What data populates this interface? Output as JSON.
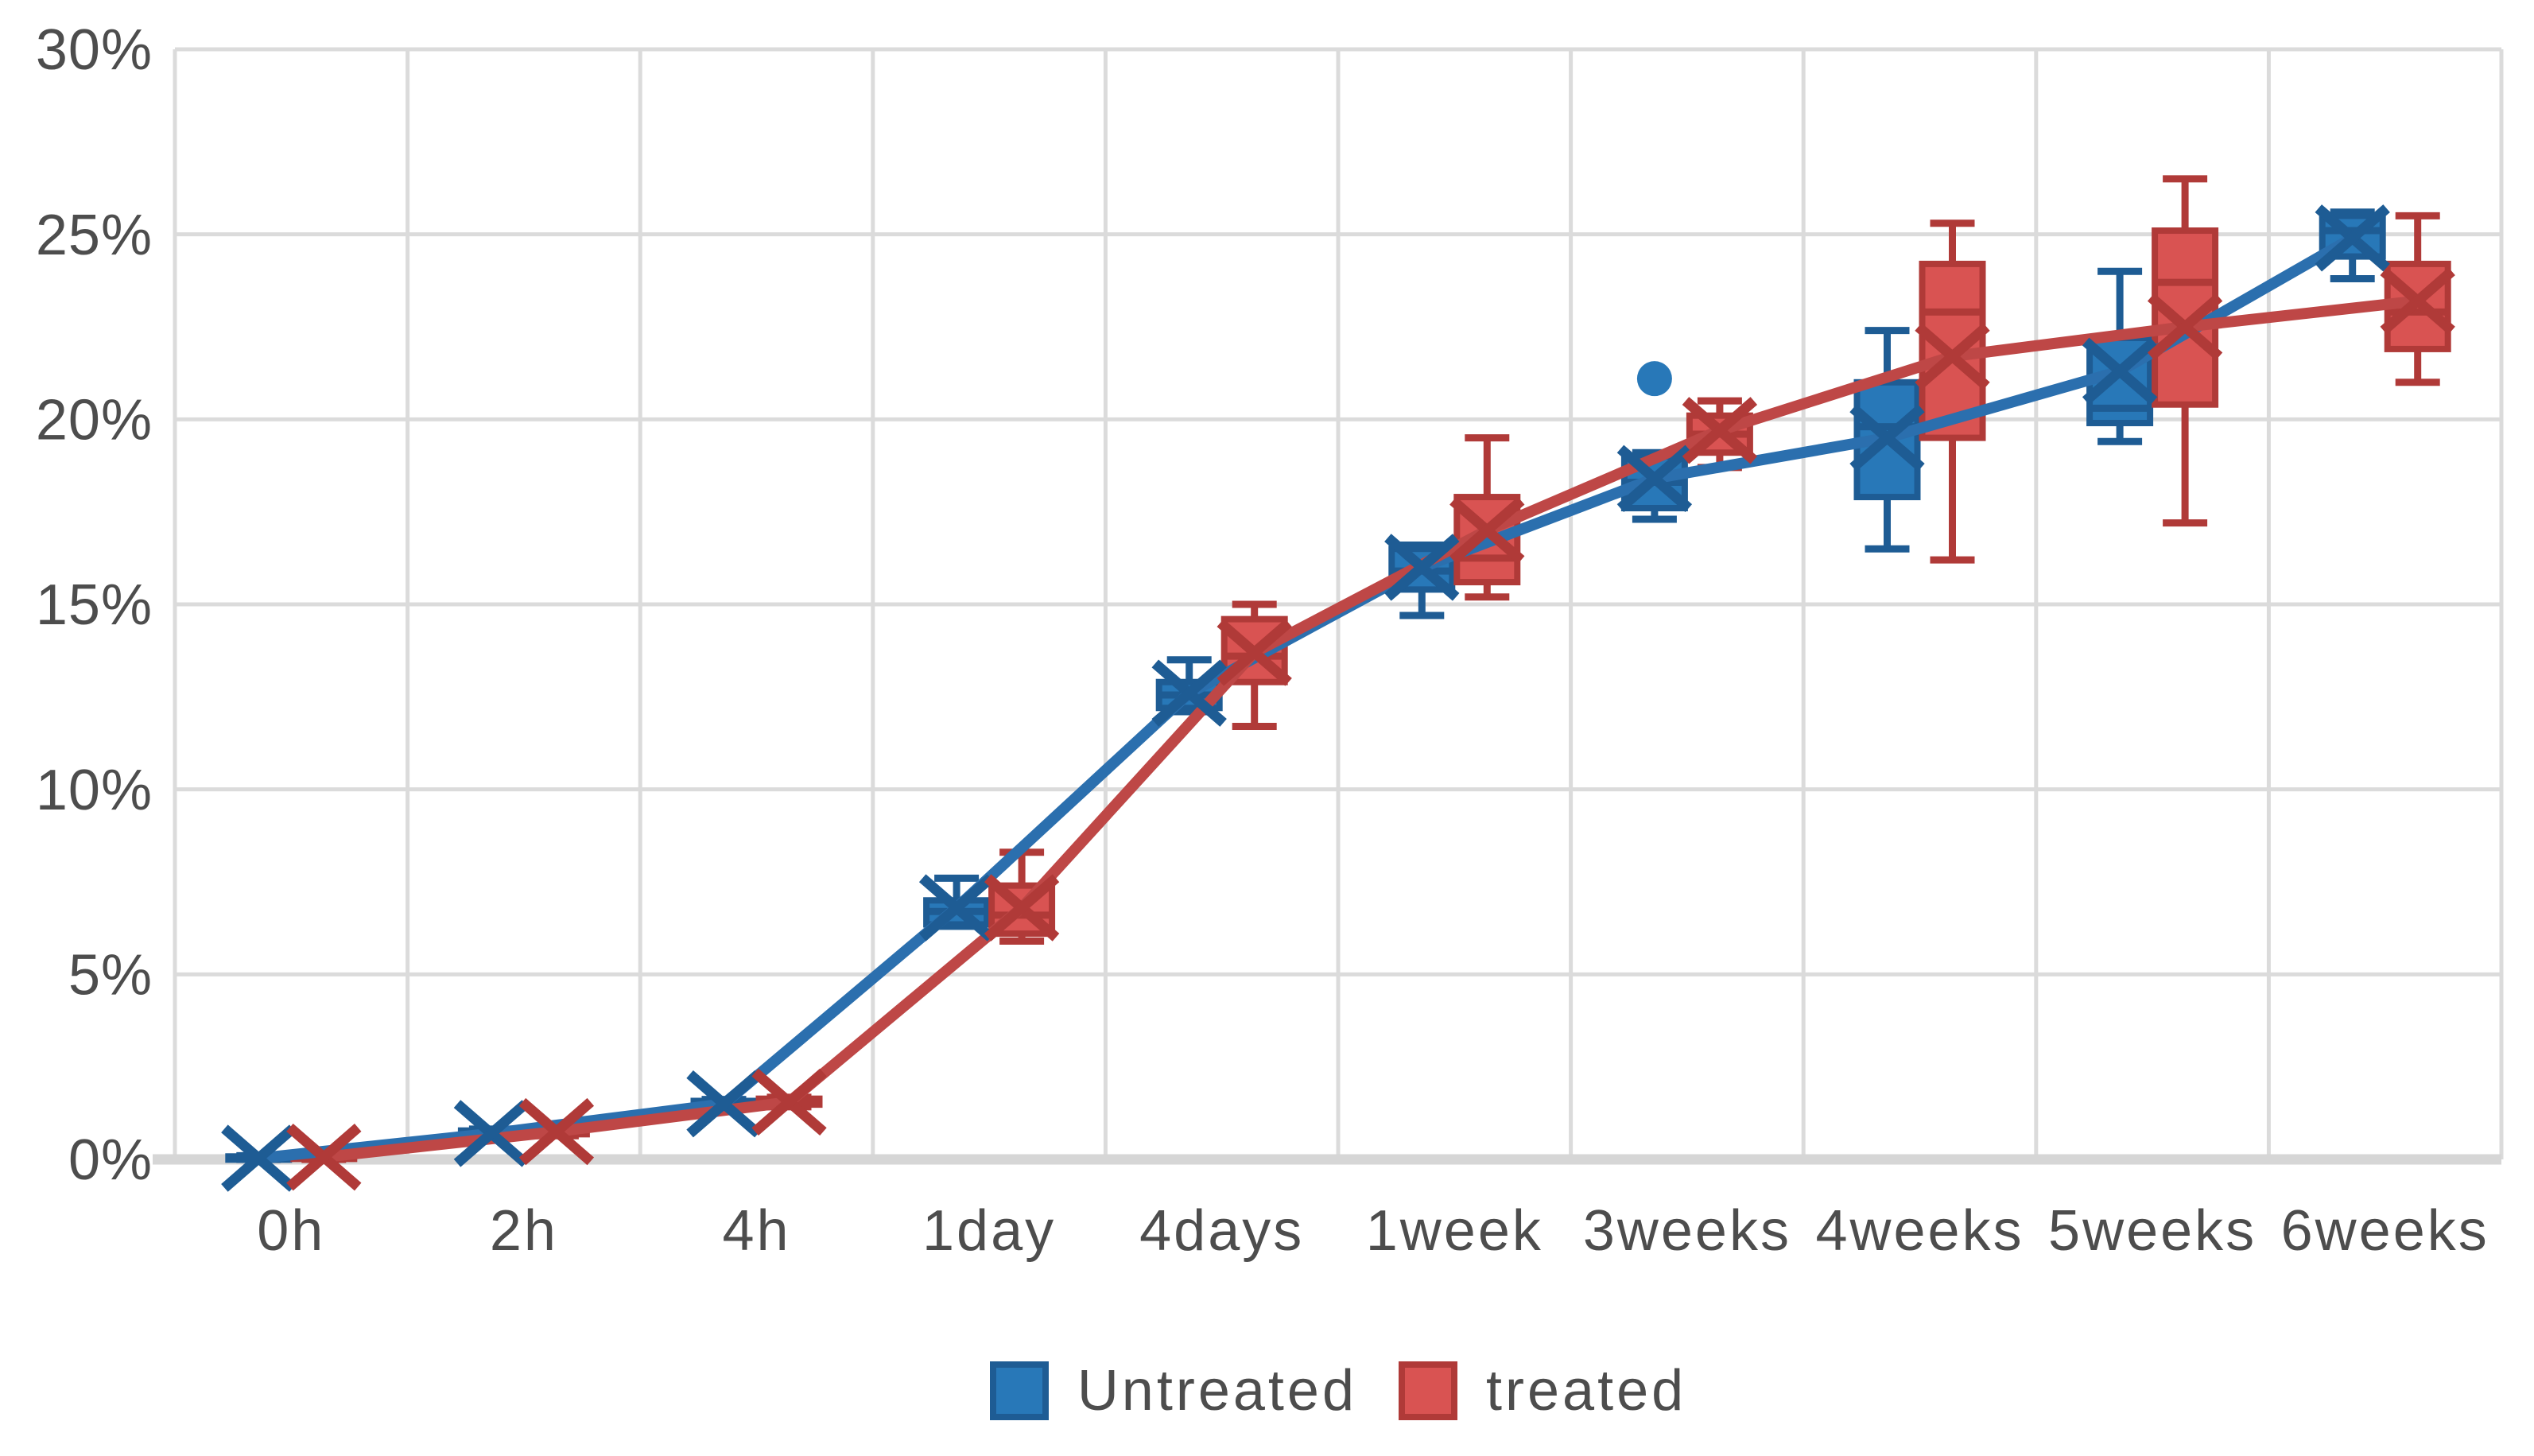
{
  "chart_data": {
    "type": "boxplot",
    "title": "",
    "categories": [
      "0h",
      "2h",
      "4h",
      "1day",
      "4days",
      "1week",
      "3weeks",
      "4weeks",
      "5weeks",
      "6weeks"
    ],
    "y_axis": {
      "min": 0,
      "max": 30,
      "step": 5,
      "tick_labels": [
        "0%",
        "5%",
        "10%",
        "15%",
        "20%",
        "25%",
        "30%"
      ],
      "unit": "%"
    },
    "grid": {
      "horizontal": true,
      "vertical": true,
      "color": "#dbdbdb",
      "axis_color": "#d6d6d6",
      "text_color": "#4d4d4d"
    },
    "series": [
      {
        "name": "Untreated",
        "fill_color": "#2878b8",
        "dark_color": "#1e5c94",
        "line_color": "#2b6fae",
        "boxes": [
          {
            "category": "0h",
            "low": 0.0,
            "q1": 0.0,
            "median": 0.03,
            "q3": 0.08,
            "high": 0.1,
            "mean": 0.03
          },
          {
            "category": "2h",
            "low": 0.58,
            "q1": 0.62,
            "median": 0.7,
            "q3": 0.78,
            "high": 0.82,
            "mean": 0.7
          },
          {
            "category": "4h",
            "low": 1.38,
            "q1": 1.44,
            "median": 1.5,
            "q3": 1.58,
            "high": 1.62,
            "mean": 1.5
          },
          {
            "category": "1day",
            "low": 6.3,
            "q1": 6.35,
            "median": 6.7,
            "q3": 7.0,
            "high": 7.6,
            "mean": 6.8
          },
          {
            "category": "4days",
            "low": 12.1,
            "q1": 12.2,
            "median": 12.55,
            "q3": 12.9,
            "high": 13.5,
            "mean": 12.6
          },
          {
            "category": "1week",
            "low": 14.7,
            "q1": 15.4,
            "median": 15.9,
            "q3": 16.5,
            "high": 16.6,
            "mean": 16.0
          },
          {
            "category": "3weeks",
            "low": 17.3,
            "q1": 17.6,
            "median": 18.3,
            "q3": 19.0,
            "high": 19.1,
            "mean": 18.4
          },
          {
            "category": "4weeks",
            "low": 16.5,
            "q1": 17.9,
            "median": 19.8,
            "q3": 21.0,
            "high": 22.4,
            "mean": 19.5
          },
          {
            "category": "5weeks",
            "low": 19.4,
            "q1": 19.9,
            "median": 20.3,
            "q3": 22.2,
            "high": 24.0,
            "mean": 21.3
          },
          {
            "category": "6weeks",
            "low": 23.8,
            "q1": 24.4,
            "median": 25.1,
            "q3": 25.5,
            "high": 25.6,
            "mean": 24.9
          }
        ],
        "outliers": [
          {
            "category": "3weeks",
            "value": 21.1
          }
        ]
      },
      {
        "name": "treated",
        "fill_color": "#d95352",
        "dark_color": "#b03a38",
        "line_color": "#be4746",
        "boxes": [
          {
            "category": "0h",
            "low": 0.0,
            "q1": 0.02,
            "median": 0.06,
            "q3": 0.1,
            "high": 0.12,
            "mean": 0.06
          },
          {
            "category": "2h",
            "low": 0.64,
            "q1": 0.68,
            "median": 0.75,
            "q3": 0.82,
            "high": 0.86,
            "mean": 0.75
          },
          {
            "category": "4h",
            "low": 1.42,
            "q1": 1.48,
            "median": 1.56,
            "q3": 1.64,
            "high": 1.68,
            "mean": 1.55
          },
          {
            "category": "1day",
            "low": 5.9,
            "q1": 6.1,
            "median": 6.6,
            "q3": 7.4,
            "high": 8.3,
            "mean": 6.8
          },
          {
            "category": "4days",
            "low": 11.7,
            "q1": 12.9,
            "median": 13.6,
            "q3": 14.6,
            "high": 15.0,
            "mean": 13.7
          },
          {
            "category": "1week",
            "low": 15.2,
            "q1": 15.6,
            "median": 16.25,
            "q3": 17.9,
            "high": 19.5,
            "mean": 17.0
          },
          {
            "category": "3weeks",
            "low": 18.7,
            "q1": 19.1,
            "median": 19.6,
            "q3": 20.1,
            "high": 20.5,
            "mean": 19.7
          },
          {
            "category": "4weeks",
            "low": 16.2,
            "q1": 19.5,
            "median": 22.9,
            "q3": 24.2,
            "high": 25.3,
            "mean": 21.7
          },
          {
            "category": "5weeks",
            "low": 17.2,
            "q1": 20.4,
            "median": 23.7,
            "q3": 25.1,
            "high": 26.5,
            "mean": 22.5
          },
          {
            "category": "6weeks",
            "low": 21.0,
            "q1": 21.9,
            "median": 22.9,
            "q3": 24.2,
            "high": 25.5,
            "mean": 23.2
          }
        ],
        "outliers": []
      }
    ],
    "legend": {
      "position": "bottom",
      "items": [
        {
          "label": "Untreated",
          "color": "#2878b8",
          "border": "#1e5c94"
        },
        {
          "label": "treated",
          "color": "#d95352",
          "border": "#b03a38"
        }
      ]
    }
  }
}
